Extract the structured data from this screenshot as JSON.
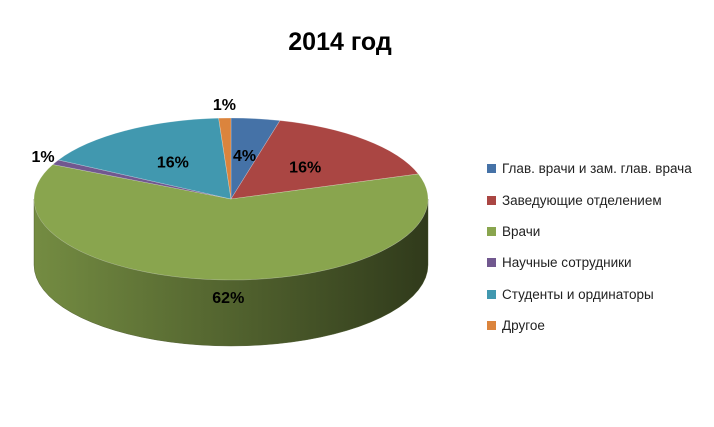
{
  "chart_data": {
    "type": "pie",
    "title": "2014 год",
    "categories": [
      "Глав. врачи и зам. глав. врача",
      "Заведующие отделением",
      "Врачи",
      "Научные сотрудники",
      "Студенты и ординаторы",
      "Другое"
    ],
    "values": [
      4,
      16,
      62,
      1,
      16,
      1
    ],
    "data_labels": [
      "4%",
      "16%",
      "62%",
      "1%",
      "16%",
      "1%"
    ],
    "colors": [
      "#4572A7",
      "#AA4643",
      "#89A54E",
      "#71588F",
      "#4198AF",
      "#DB843D"
    ],
    "style": "3d",
    "legend_position": "right"
  }
}
